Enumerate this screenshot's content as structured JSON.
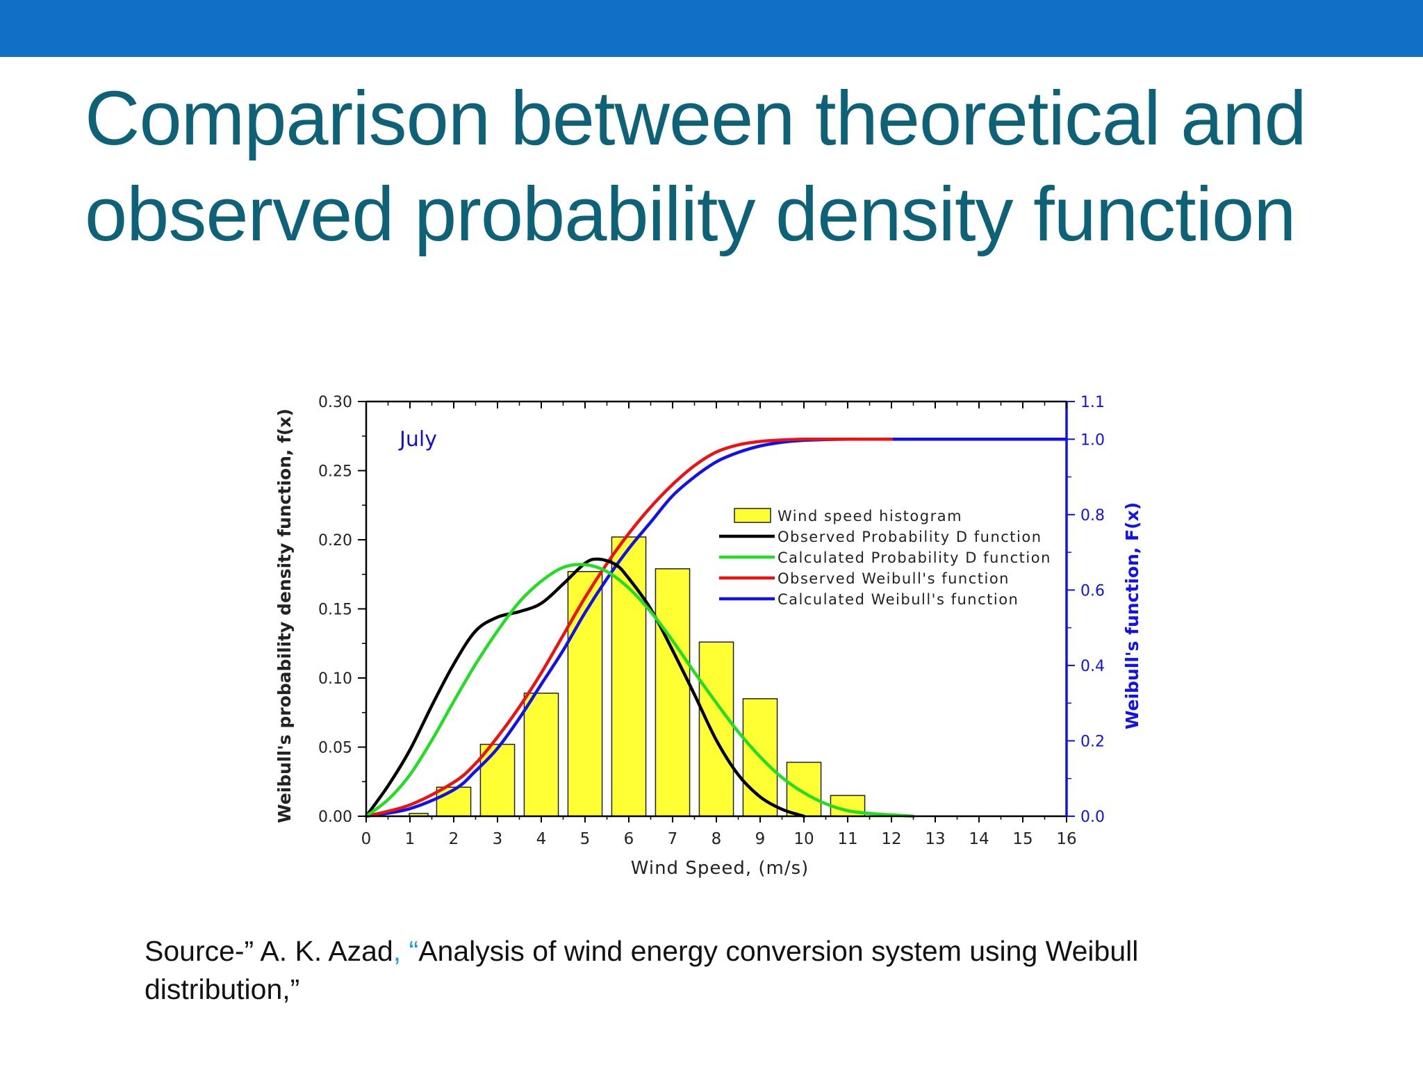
{
  "slide": {
    "title_line1": "Comparison between theoretical and",
    "title_line2": "observed probability density function",
    "source_prefix": "Source-” A. K. Azad",
    "source_accent": ", “",
    "source_rest_line1": "Analysis of wind energy conversion system using Weibull",
    "source_line2": "distribution,”",
    "colors": {
      "top_bar": "#1170c4",
      "title": "#0e6278",
      "source_accent": "#1aa0d8"
    }
  },
  "chart_data": {
    "type": "bar",
    "annotation": "July",
    "xlabel": "Wind Speed, (m/s)",
    "ylabel": "Weibull's probability density function, f(x)",
    "y2label": "Weibull's function, F(x)",
    "xlim": [
      0,
      16
    ],
    "ylim": [
      0,
      0.3
    ],
    "y2lim": [
      0,
      1.1
    ],
    "x_ticks": [
      "0",
      "1",
      "2",
      "3",
      "4",
      "5",
      "6",
      "7",
      "8",
      "9",
      "10",
      "11",
      "12",
      "13",
      "14",
      "15",
      "16"
    ],
    "y_ticks": [
      "0.00",
      "0.05",
      "0.10",
      "0.15",
      "0.20",
      "0.25",
      "0.30"
    ],
    "y2_ticks": [
      "0.0",
      "0.2",
      "0.4",
      "0.6",
      "0.8",
      "1.0",
      "1.1"
    ],
    "legend_position": "upper-right",
    "legend": [
      "Wind speed histogram",
      "Observed Probability D function",
      "Calculated Probability D function",
      "Observed Weibull's function",
      "Calculated Weibull's function"
    ],
    "histogram": {
      "name": "Wind speed histogram",
      "color": "#ffff33",
      "x": [
        1.2,
        2.0,
        3.0,
        4.0,
        5.0,
        6.0,
        7.0,
        8.0,
        9.0,
        10.0,
        11.0
      ],
      "values": [
        0.002,
        0.021,
        0.052,
        0.089,
        0.177,
        0.202,
        0.179,
        0.126,
        0.085,
        0.039,
        0.015
      ]
    },
    "series": [
      {
        "name": "Observed Probability D function",
        "axis": "left",
        "color": "#000000",
        "x": [
          0,
          0.5,
          1,
          1.5,
          2,
          2.5,
          3,
          3.5,
          4,
          4.5,
          5,
          5.3,
          5.7,
          6,
          6.5,
          7,
          7.5,
          8,
          8.5,
          9,
          9.5,
          10
        ],
        "values": [
          0,
          0.022,
          0.048,
          0.08,
          0.11,
          0.134,
          0.144,
          0.148,
          0.154,
          0.168,
          0.183,
          0.186,
          0.182,
          0.172,
          0.15,
          0.12,
          0.088,
          0.055,
          0.03,
          0.014,
          0.005,
          0
        ]
      },
      {
        "name": "Calculated Probability D function",
        "axis": "left",
        "color": "#22dd22",
        "x": [
          0,
          0.5,
          1,
          1.5,
          2,
          2.5,
          3,
          3.5,
          4,
          4.5,
          5,
          5.5,
          6,
          6.5,
          7,
          7.5,
          8,
          8.5,
          9,
          9.5,
          10,
          10.5,
          11,
          11.5,
          12,
          12.5
        ],
        "values": [
          0,
          0.012,
          0.03,
          0.055,
          0.083,
          0.11,
          0.134,
          0.155,
          0.17,
          0.18,
          0.182,
          0.177,
          0.165,
          0.148,
          0.127,
          0.104,
          0.082,
          0.061,
          0.043,
          0.028,
          0.017,
          0.009,
          0.004,
          0.002,
          0.001,
          0
        ]
      },
      {
        "name": "Observed Weibull's function",
        "axis": "right",
        "color": "#ee1111",
        "x": [
          0,
          1,
          2,
          2.5,
          3,
          3.5,
          4,
          4.5,
          5,
          5.5,
          6,
          6.5,
          7,
          7.5,
          8,
          8.5,
          9,
          9.5,
          10,
          11,
          12
        ],
        "values": [
          0,
          0.03,
          0.09,
          0.14,
          0.21,
          0.29,
          0.38,
          0.48,
          0.58,
          0.67,
          0.75,
          0.82,
          0.88,
          0.93,
          0.966,
          0.985,
          0.994,
          0.998,
          1.0,
          1.0,
          1.0
        ]
      },
      {
        "name": "Calculated Weibull's function",
        "axis": "right",
        "color": "#1111ee",
        "x": [
          0,
          1,
          2,
          2.5,
          3,
          3.5,
          4,
          4.5,
          5,
          5.5,
          6,
          6.5,
          7,
          7.5,
          8,
          8.5,
          9,
          9.5,
          10,
          10.5,
          11,
          12,
          13,
          14,
          15,
          16
        ],
        "values": [
          0,
          0.02,
          0.07,
          0.12,
          0.18,
          0.26,
          0.35,
          0.44,
          0.54,
          0.63,
          0.71,
          0.78,
          0.85,
          0.9,
          0.94,
          0.965,
          0.982,
          0.992,
          0.997,
          0.999,
          1.0,
          1.0,
          1.0,
          1.0,
          1.0,
          1.0
        ]
      }
    ]
  }
}
